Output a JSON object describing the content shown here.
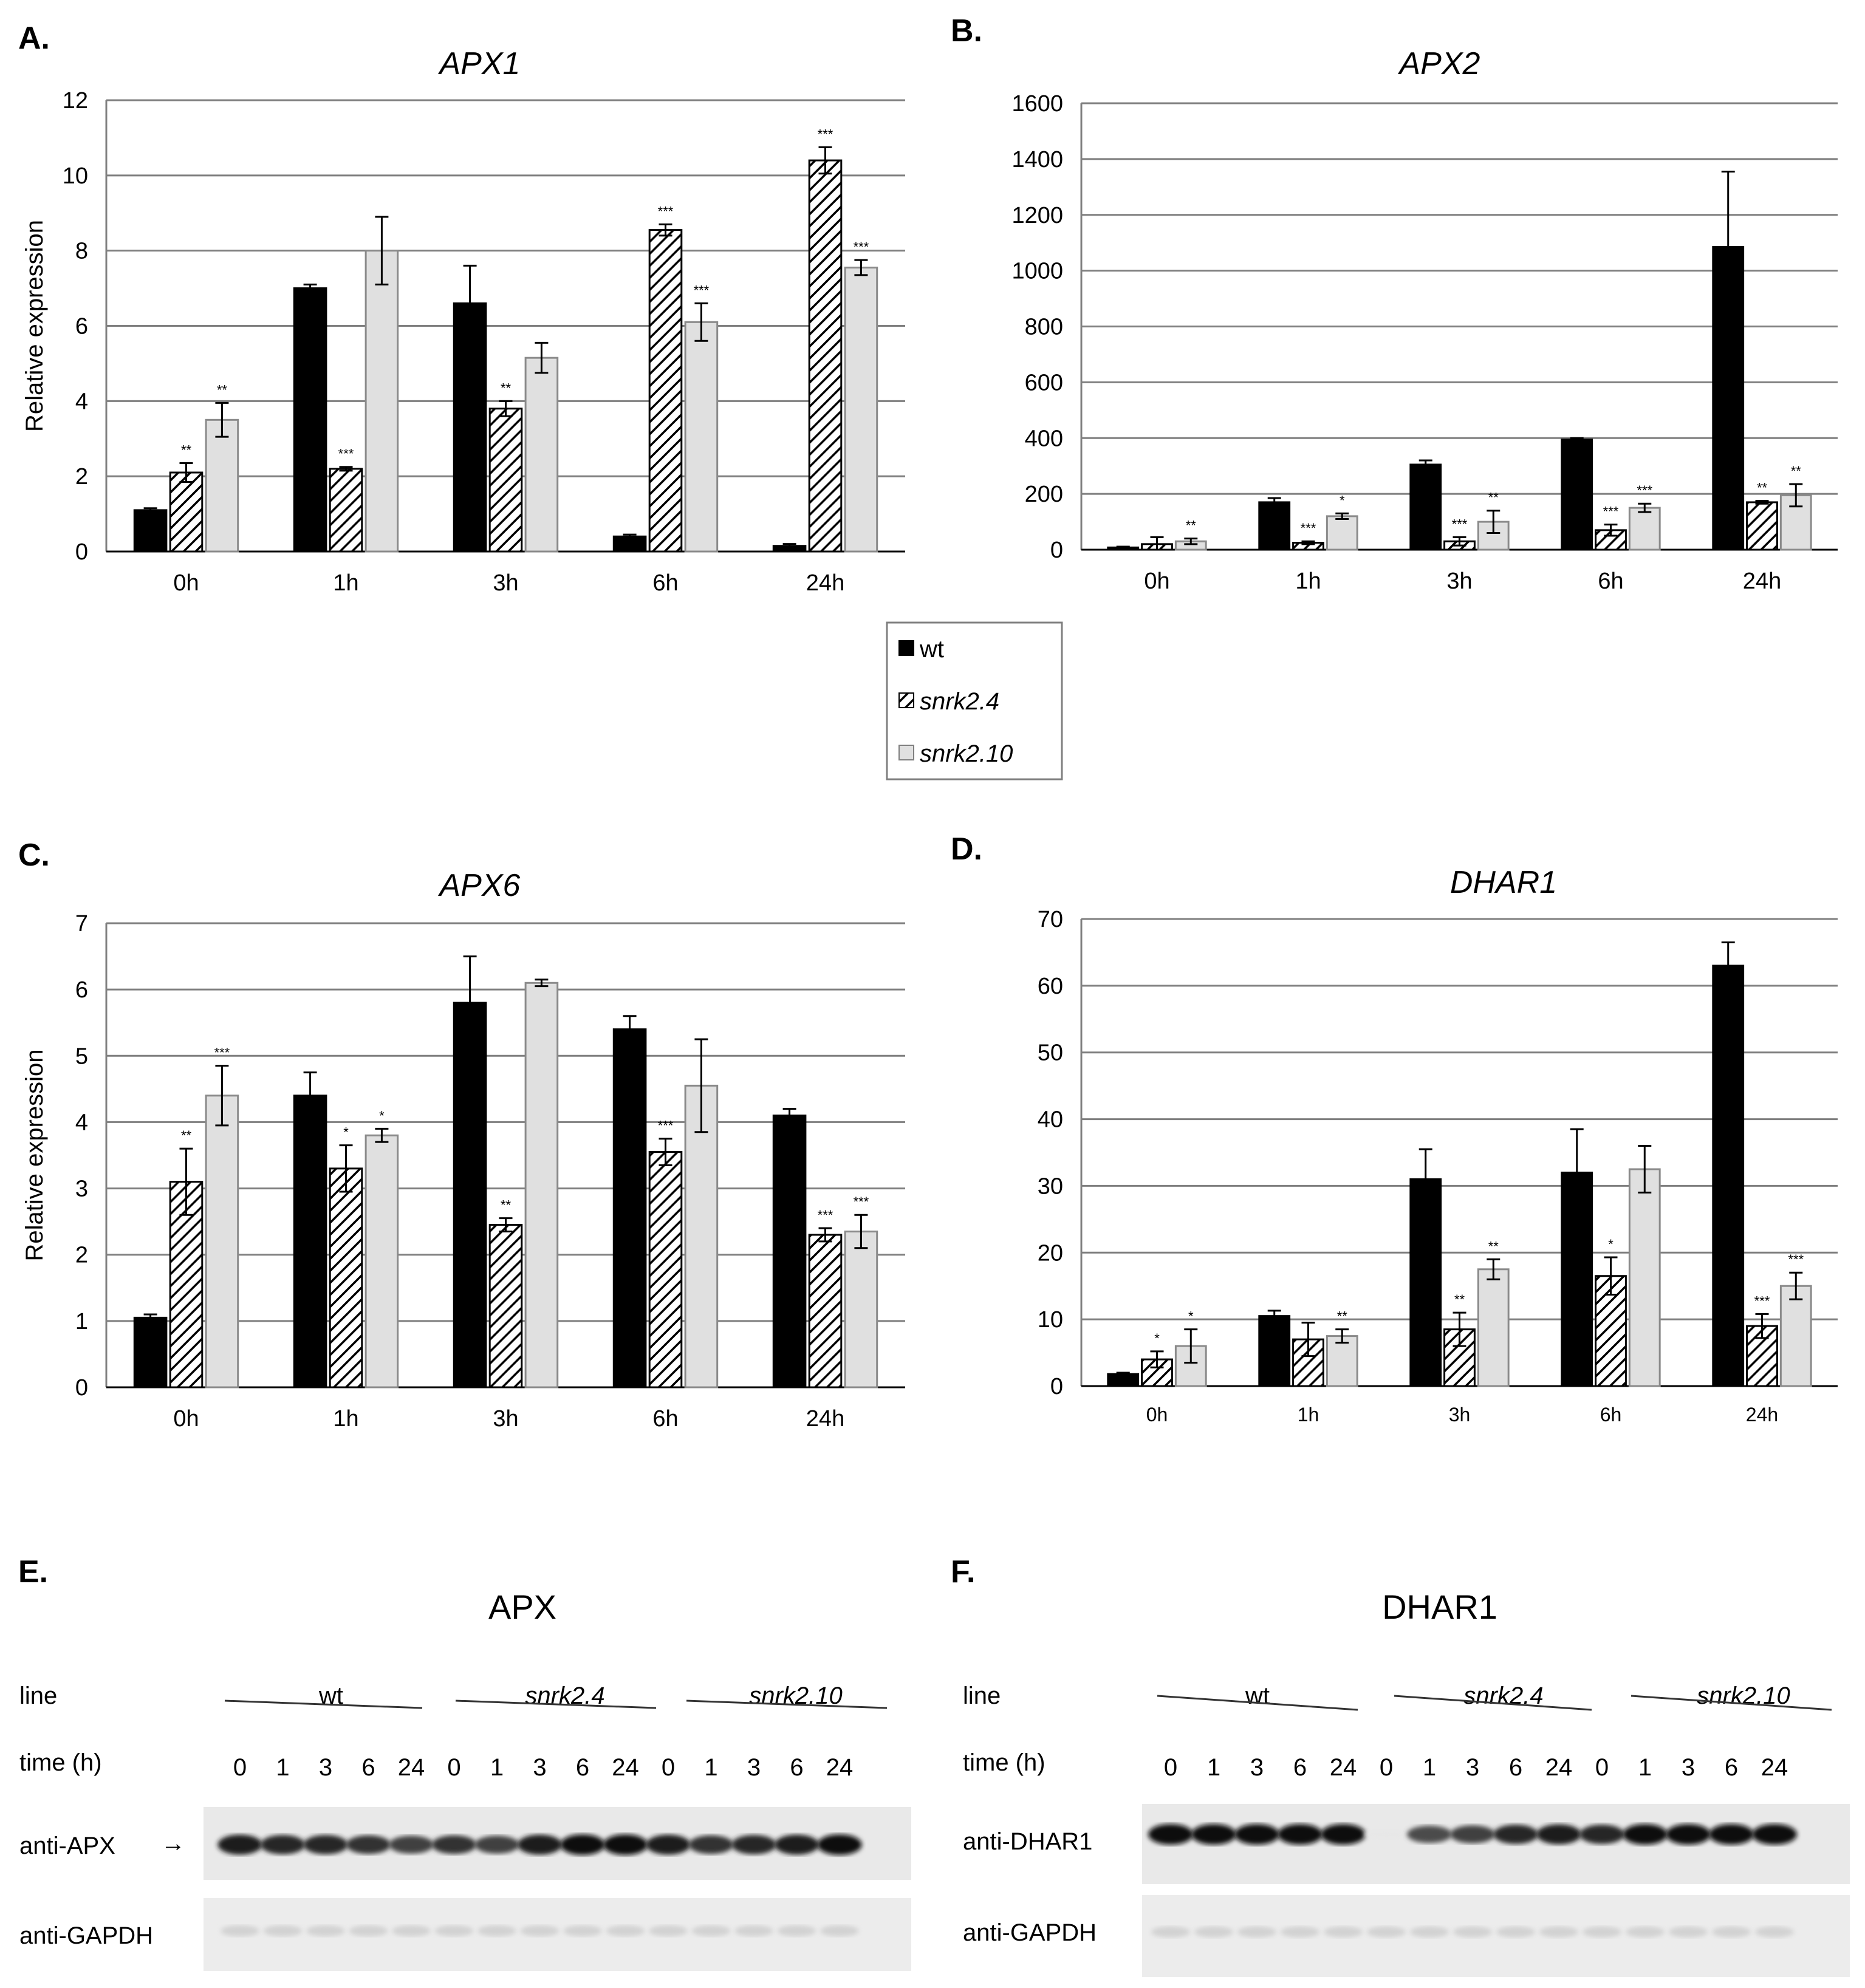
{
  "legend": {
    "entries": [
      {
        "name": "wt",
        "italic": false
      },
      {
        "name": "snrk2.4",
        "italic": true
      },
      {
        "name": "snrk2.10",
        "italic": true
      }
    ],
    "colors": {
      "wt": "#000000",
      "snrk2.4": "hatched",
      "snrk2.10": "#e0e0e0"
    }
  },
  "chart_data": [
    {
      "type": "bar",
      "panel": "A.",
      "title": "APX1",
      "ylabel": "Relative expression",
      "xlabel": "",
      "categories": [
        "0h",
        "1h",
        "3h",
        "6h",
        "24h"
      ],
      "ylim": [
        0,
        12
      ],
      "yticks": [
        "0",
        "2",
        "4",
        "6",
        "8",
        "10",
        "12"
      ],
      "series": [
        {
          "name": "wt",
          "values": [
            1.1,
            7.0,
            6.6,
            0.4,
            0.15
          ],
          "errors": [
            0.05,
            0.1,
            1.0,
            0.05,
            0.05
          ],
          "sig": [
            "",
            "",
            "",
            "",
            ""
          ]
        },
        {
          "name": "snrk2.4",
          "values": [
            2.1,
            2.2,
            3.8,
            8.55,
            10.4
          ],
          "errors": [
            0.25,
            0.05,
            0.2,
            0.15,
            0.35
          ],
          "sig": [
            "**",
            "***",
            "**",
            "***",
            "***"
          ]
        },
        {
          "name": "snrk2.10",
          "values": [
            3.5,
            8.0,
            5.15,
            6.1,
            7.55
          ],
          "errors": [
            0.45,
            0.9,
            0.4,
            0.5,
            0.2
          ],
          "sig": [
            "**",
            "",
            "",
            "***",
            "***"
          ]
        }
      ]
    },
    {
      "type": "bar",
      "panel": "B.",
      "title": "APX2",
      "ylabel": "",
      "xlabel": "",
      "categories": [
        "0h",
        "1h",
        "3h",
        "6h",
        "24h"
      ],
      "ylim": [
        0,
        1600
      ],
      "yticks": [
        "0",
        "200",
        "400",
        "600",
        "800",
        "1000",
        "1200",
        "1400",
        "1600"
      ],
      "series": [
        {
          "name": "wt",
          "values": [
            8,
            170,
            305,
            395,
            1085
          ],
          "errors": [
            3,
            15,
            15,
            5,
            270
          ],
          "sig": [
            "",
            "",
            "",
            "",
            ""
          ]
        },
        {
          "name": "snrk2.4",
          "values": [
            20,
            25,
            30,
            70,
            170
          ],
          "errors": [
            25,
            5,
            15,
            20,
            5
          ],
          "sig": [
            "",
            "***",
            "***",
            "***",
            "**"
          ]
        },
        {
          "name": "snrk2.10",
          "values": [
            30,
            120,
            100,
            150,
            195
          ],
          "errors": [
            10,
            10,
            40,
            15,
            40
          ],
          "sig": [
            "**",
            "*",
            "**",
            "***",
            "**"
          ]
        }
      ]
    },
    {
      "type": "bar",
      "panel": "C.",
      "title": "APX6",
      "ylabel": "Relative expression",
      "xlabel": "",
      "categories": [
        "0h",
        "1h",
        "3h",
        "6h",
        "24h"
      ],
      "ylim": [
        0,
        7
      ],
      "yticks": [
        "0",
        "1",
        "2",
        "3",
        "4",
        "5",
        "6",
        "7"
      ],
      "series": [
        {
          "name": "wt",
          "values": [
            1.05,
            4.4,
            5.8,
            5.4,
            4.1
          ],
          "errors": [
            0.05,
            0.35,
            0.7,
            0.2,
            0.1
          ],
          "sig": [
            "",
            "",
            "",
            "",
            ""
          ]
        },
        {
          "name": "snrk2.4",
          "values": [
            3.1,
            3.3,
            2.45,
            3.55,
            2.3
          ],
          "errors": [
            0.5,
            0.35,
            0.1,
            0.2,
            0.1
          ],
          "sig": [
            "**",
            "*",
            "**",
            "***",
            "***"
          ]
        },
        {
          "name": "snrk2.10",
          "values": [
            4.4,
            3.8,
            6.1,
            4.55,
            2.35
          ],
          "errors": [
            0.45,
            0.1,
            0.05,
            0.7,
            0.25
          ],
          "sig": [
            "***",
            "*",
            "",
            "",
            "***"
          ]
        }
      ]
    },
    {
      "type": "bar",
      "panel": "D.",
      "title": "DHAR1",
      "ylabel": "",
      "xlabel": "",
      "categories": [
        "0h",
        "1h",
        "3h",
        "6h",
        "24h"
      ],
      "ylim": [
        0,
        70
      ],
      "yticks": [
        "0",
        "10",
        "20",
        "30",
        "40",
        "50",
        "60",
        "70"
      ],
      "series": [
        {
          "name": "wt",
          "values": [
            1.8,
            10.5,
            31,
            32,
            63
          ],
          "errors": [
            0.2,
            0.8,
            4.5,
            6.5,
            3.5
          ],
          "sig": [
            "",
            "",
            "",
            "",
            ""
          ]
        },
        {
          "name": "snrk2.4",
          "values": [
            4,
            7,
            8.5,
            16.5,
            9
          ],
          "errors": [
            1.2,
            2.5,
            2.5,
            2.8,
            1.8
          ],
          "sig": [
            "*",
            "",
            "**",
            "*",
            "***"
          ]
        },
        {
          "name": "snrk2.10",
          "values": [
            6,
            7.5,
            17.5,
            32.5,
            15
          ],
          "errors": [
            2.5,
            1,
            1.5,
            3.5,
            2
          ],
          "sig": [
            "*",
            "**",
            "**",
            "",
            "***"
          ]
        }
      ]
    }
  ],
  "blots": [
    {
      "panel": "E.",
      "title": "APX",
      "line_label": "line",
      "time_label": "time  (h)",
      "groups": [
        "wt",
        "snrk2.4",
        "snrk2.10"
      ],
      "lanes": [
        "0",
        "1",
        "3",
        "6",
        "24",
        "0",
        "1",
        "3",
        "6",
        "24",
        "0",
        "1",
        "3",
        "6",
        "24"
      ],
      "blot1_label": "anti-APX",
      "blot2_label": "anti-GAPDH",
      "arrow": "→",
      "intensity": [
        0.95,
        0.9,
        0.9,
        0.85,
        0.8,
        0.85,
        0.8,
        0.95,
        1.0,
        1.0,
        0.95,
        0.85,
        0.9,
        0.95,
        1.0
      ]
    },
    {
      "panel": "F.",
      "title": "DHAR1",
      "line_label": "line",
      "time_label": "time  (h)",
      "groups": [
        "wt",
        "snrk2.4",
        "snrk2.10"
      ],
      "lanes": [
        "0",
        "1",
        "3",
        "6",
        "24",
        "0",
        "1",
        "3",
        "6",
        "24",
        "0",
        "1",
        "3",
        "6",
        "24"
      ],
      "blot1_label": "anti-DHAR1",
      "blot2_label": "anti-GAPDH",
      "intensity": [
        1.0,
        1.0,
        1.0,
        1.0,
        1.0,
        0.1,
        0.75,
        0.8,
        0.9,
        0.95,
        0.9,
        1.0,
        1.0,
        1.0,
        1.0
      ]
    }
  ]
}
